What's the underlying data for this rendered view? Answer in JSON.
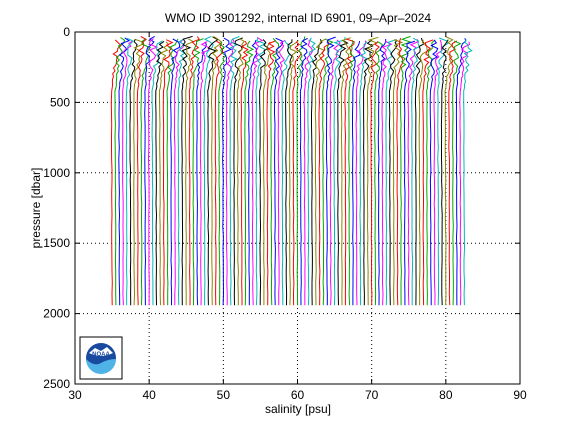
{
  "chart_data": {
    "type": "line",
    "title": "WMO ID 3901292, internal ID 6901, 09–Apr–2024",
    "xlabel": "salinity [psu]",
    "ylabel": "pressure [dbar]",
    "xlim": [
      30,
      90
    ],
    "ylim": [
      2500,
      0
    ],
    "y_reversed": true,
    "grid": true,
    "xticks": [
      "30",
      "40",
      "50",
      "60",
      "70",
      "80",
      "90"
    ],
    "yticks": [
      "0",
      "500",
      "1000",
      "1500",
      "2000",
      "2500"
    ],
    "profiles": {
      "count": 96,
      "first_offset_x": 35.0,
      "offset_step_x": 0.5,
      "surface_pressure": 30,
      "bottom_pressure": 2000,
      "colors": [
        "#ff0000",
        "#00aa00",
        "#0000ff",
        "#ff00ff",
        "#00bbbb",
        "#000000",
        "#888800"
      ]
    },
    "logo": "noaa-logo"
  }
}
